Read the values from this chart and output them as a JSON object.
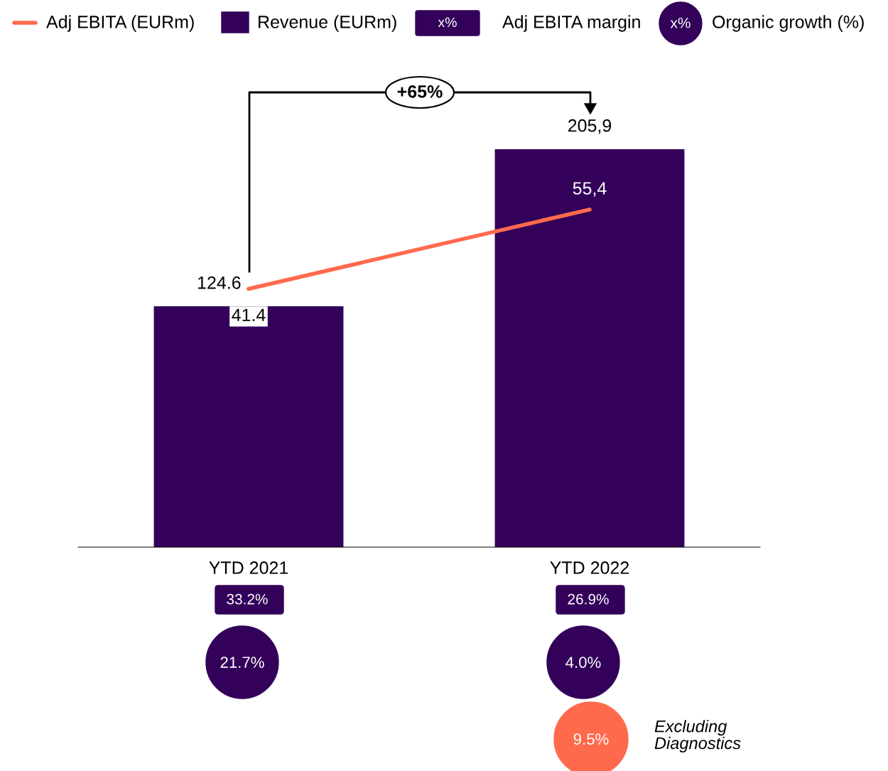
{
  "chart_data": {
    "type": "bar",
    "categories": [
      "YTD 2021",
      "YTD 2022"
    ],
    "series": [
      {
        "name": "Revenue (EURm)",
        "color": "#33005a",
        "values": [
          124.6,
          205.9
        ],
        "value_labels": [
          "124.6",
          "205,9"
        ]
      },
      {
        "name": "Adj EBITA (EURm)",
        "type": "line",
        "axis": "y2",
        "color": "#ff6a4d",
        "values": [
          41.4,
          55.4
        ],
        "value_labels": [
          "41.4",
          "55,4"
        ]
      }
    ],
    "tick_labels": "x",
    "grid": false,
    "legend": "top",
    "marker": "none",
    "line_style": "solid",
    "annotations": [
      "+65%",
      "x%",
      "Adj EBITA margin",
      "x%",
      "Organic growth (%)",
      "33.2%",
      "26.9%",
      "21.7%",
      "4.0%",
      "9.5%",
      "Excluding\nDiagnostics"
    ]
  }
}
